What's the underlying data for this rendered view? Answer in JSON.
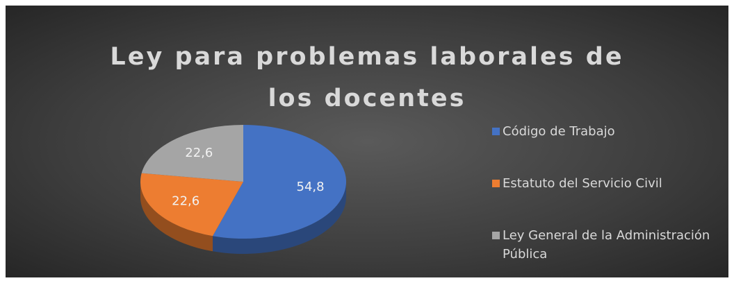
{
  "chart_data": {
    "type": "pie",
    "title": "Ley para problemas laborales de los docentes",
    "categories": [
      "Código de Trabajo",
      "Estatuto del Servicio Civil",
      "Ley General de la Administración Pública"
    ],
    "values": [
      54.8,
      22.6,
      22.6
    ],
    "value_labels": [
      "54,8",
      "22,6",
      "22,6"
    ],
    "colors": [
      "#4472c4",
      "#ed7d31",
      "#a5a5a5"
    ],
    "legend": "right"
  }
}
